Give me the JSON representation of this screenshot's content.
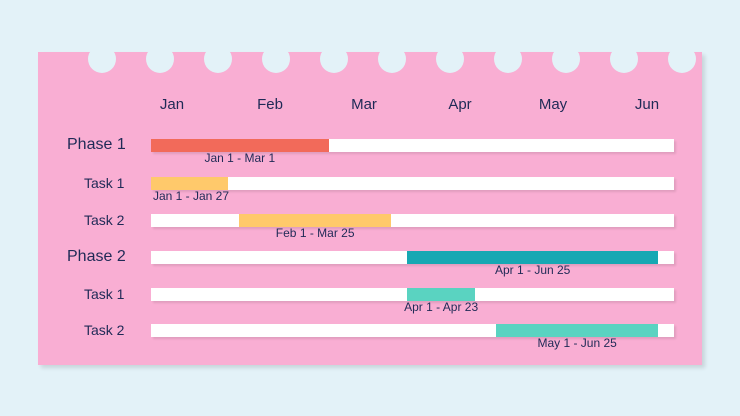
{
  "chart_data": {
    "type": "gantt",
    "months": [
      "Jan",
      "Feb",
      "Mar",
      "Apr",
      "May",
      "Jun"
    ],
    "rows": [
      {
        "label": "Phase 1",
        "kind": "phase",
        "start": "Jan 1",
        "end": "Mar 1",
        "range_label": "Jan 1 - Mar 1",
        "color": "#f26a5a"
      },
      {
        "label": "Task 1",
        "kind": "task",
        "start": "Jan 1",
        "end": "Jan 27",
        "range_label": "Jan 1 - Jan 27",
        "color": "#ffc96b"
      },
      {
        "label": "Task 2",
        "kind": "task",
        "start": "Feb 1",
        "end": "Mar 25",
        "range_label": "Feb 1 - Mar 25",
        "color": "#ffc96b"
      },
      {
        "label": "Phase 2",
        "kind": "phase",
        "start": "Apr 1",
        "end": "Jun 25",
        "range_label": "Apr 1 - Jun 25",
        "color": "#17a8b3"
      },
      {
        "label": "Task 1",
        "kind": "task",
        "start": "Apr 1",
        "end": "Apr 23",
        "range_label": "Apr 1 - Apr 23",
        "color": "#5ad3c1"
      },
      {
        "label": "Task 2",
        "kind": "task",
        "start": "May 1",
        "end": "Jun 25",
        "range_label": "May 1 - Jun 25",
        "color": "#5ad3c1"
      }
    ]
  },
  "colors": {
    "background": "#e3f2f8",
    "card": "#f9aed3",
    "track": "#ffffff",
    "text": "#1f2a56"
  }
}
